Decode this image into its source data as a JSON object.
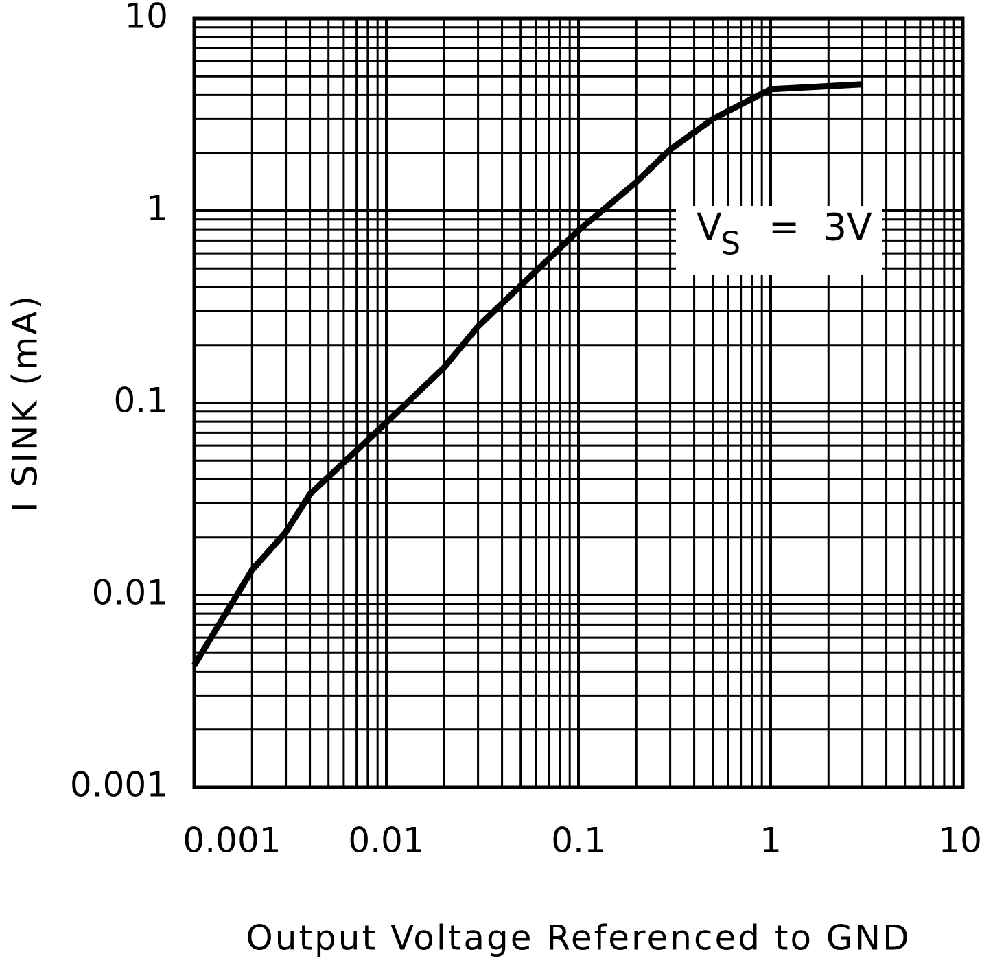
{
  "chart_data": {
    "type": "line",
    "xlabel": "Output Voltage Referenced to GND",
    "ylabel": "I SINK (mA)",
    "annotation": {
      "main": "V",
      "sub": "S",
      "rest": "=  3V"
    },
    "log_x": true,
    "log_y": true,
    "grid": true,
    "xlim": [
      0.001,
      10
    ],
    "ylim": [
      0.001,
      10
    ],
    "xticks": [
      0.001,
      0.01,
      0.1,
      1,
      10
    ],
    "yticks": [
      0.001,
      0.01,
      0.1,
      1,
      10
    ],
    "series": [
      {
        "name": null,
        "color": "#000000",
        "x": [
          0.001,
          0.002,
          0.003,
          0.004,
          0.01,
          0.02,
          0.03,
          0.1,
          0.2,
          0.3,
          0.5,
          1,
          3
        ],
        "values": [
          0.0043,
          0.0135,
          0.0213,
          0.0335,
          0.079,
          0.153,
          0.25,
          0.79,
          1.41,
          2.08,
          3.0,
          4.29,
          4.55
        ]
      }
    ]
  }
}
